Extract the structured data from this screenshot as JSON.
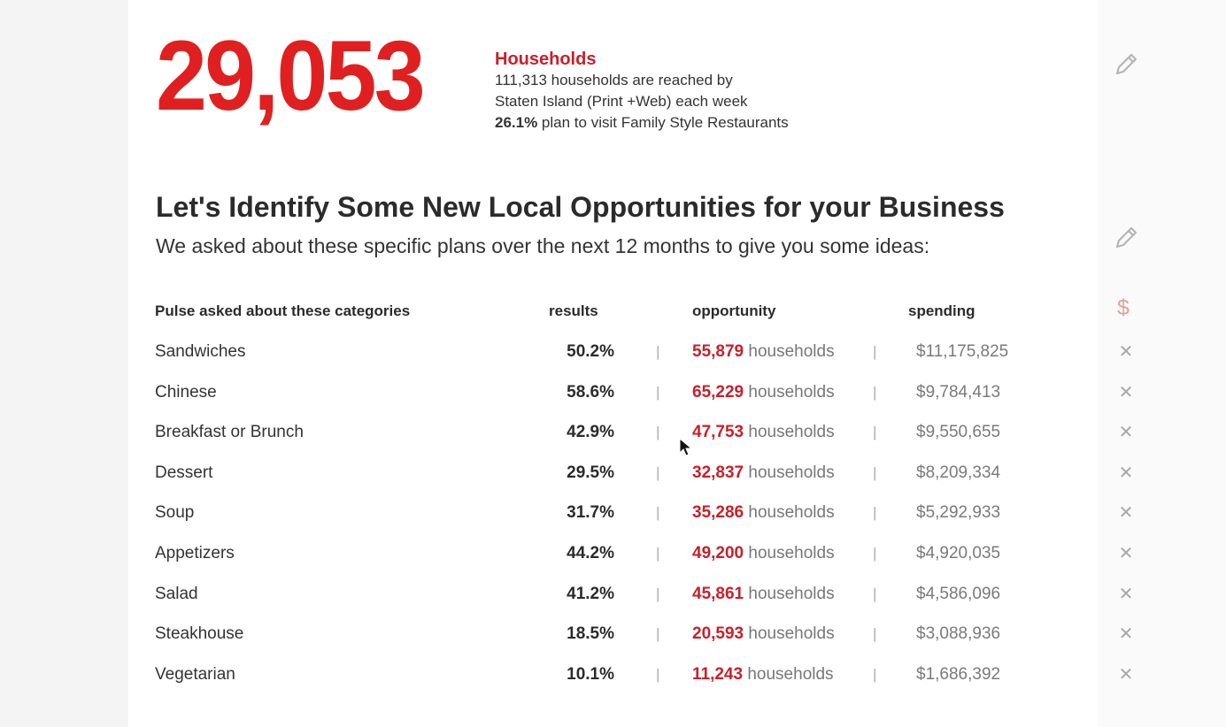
{
  "summary": {
    "big_number": "29,053",
    "title": "Households",
    "line1": "111,313 households are reached by",
    "line2": "Staten Island (Print +Web) each week",
    "line3_bold": "26.1%",
    "line3_rest": " plan to visit Family Style Restaurants"
  },
  "section": {
    "headline": "Let's Identify Some New Local Opportunities for your Business",
    "subhead": "We asked about these specific plans over the next 12 months to give you some ideas:"
  },
  "table": {
    "headers": {
      "category": "Pulse asked about these categories",
      "results": "results",
      "opportunity": "opportunity",
      "spending": "spending"
    },
    "separator": "|",
    "unit": "households",
    "rows": [
      {
        "category": "Sandwiches",
        "result": "50.2%",
        "opportunity": "55,879",
        "spending": "$11,175,825"
      },
      {
        "category": "Chinese",
        "result": "58.6%",
        "opportunity": "65,229",
        "spending": "$9,784,413"
      },
      {
        "category": "Breakfast or Brunch",
        "result": "42.9%",
        "opportunity": "47,753",
        "spending": "$9,550,655"
      },
      {
        "category": "Dessert",
        "result": "29.5%",
        "opportunity": "32,837",
        "spending": "$8,209,334"
      },
      {
        "category": "Soup",
        "result": "31.7%",
        "opportunity": "35,286",
        "spending": "$5,292,933"
      },
      {
        "category": "Appetizers",
        "result": "44.2%",
        "opportunity": "49,200",
        "spending": "$4,920,035"
      },
      {
        "category": "Salad",
        "result": "41.2%",
        "opportunity": "45,861",
        "spending": "$4,586,096"
      },
      {
        "category": "Steakhouse",
        "result": "18.5%",
        "opportunity": "20,593",
        "spending": "$3,088,936"
      },
      {
        "category": "Vegetarian",
        "result": "10.1%",
        "opportunity": "11,243",
        "spending": "$1,686,392"
      }
    ]
  },
  "icons": {
    "edit": "pencil-icon",
    "spending": "dollar-icon",
    "remove": "close-icon",
    "remove_glyph": "✕",
    "dollar_glyph": "$"
  },
  "colors": {
    "accent_red": "#e02020",
    "dark_red": "#c8202a"
  }
}
